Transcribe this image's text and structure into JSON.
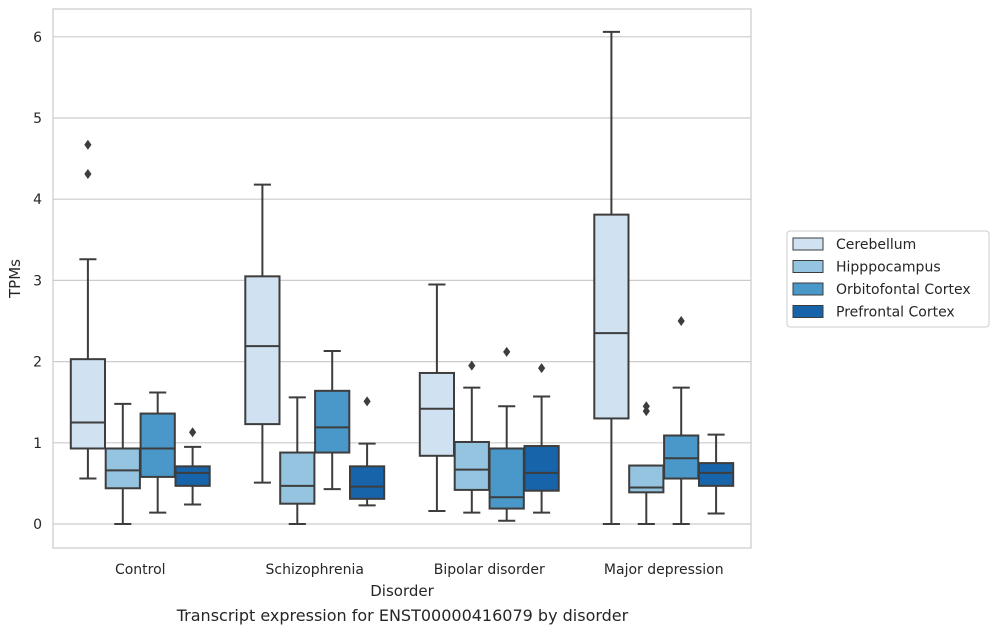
{
  "caption": "Transcript expression for ENST00000416079 by disorder",
  "chart_data": {
    "type": "box",
    "title": "",
    "xlabel": "Disorder",
    "ylabel": "TPMs",
    "ylim": [
      -0.3,
      6.35
    ],
    "yticks": [
      0,
      1,
      2,
      3,
      4,
      5,
      6
    ],
    "grid": "horizontal",
    "legend_position": "right",
    "categories": [
      "Control",
      "Schizophrenia",
      "Bipolar disorder",
      "Major depression"
    ],
    "series": [
      {
        "name": "Cerebellum",
        "color": "#d0e1f2",
        "boxes": [
          {
            "whisker_low": 0.56,
            "q1": 0.93,
            "median": 1.25,
            "q3": 2.03,
            "whisker_high": 3.26,
            "outliers": [
              4.31,
              4.67
            ]
          },
          {
            "whisker_low": 0.51,
            "q1": 1.23,
            "median": 2.19,
            "q3": 3.05,
            "whisker_high": 4.18,
            "outliers": []
          },
          {
            "whisker_low": 0.16,
            "q1": 0.84,
            "median": 1.42,
            "q3": 1.86,
            "whisker_high": 2.95,
            "outliers": []
          },
          {
            "whisker_low": 0.0,
            "q1": 1.3,
            "median": 2.35,
            "q3": 3.81,
            "whisker_high": 6.06,
            "outliers": []
          }
        ]
      },
      {
        "name": "Hipppocampus",
        "color": "#94c4df",
        "boxes": [
          {
            "whisker_low": 0.0,
            "q1": 0.44,
            "median": 0.66,
            "q3": 0.93,
            "whisker_high": 1.48,
            "outliers": []
          },
          {
            "whisker_low": 0.0,
            "q1": 0.25,
            "median": 0.47,
            "q3": 0.88,
            "whisker_high": 1.56,
            "outliers": []
          },
          {
            "whisker_low": 0.14,
            "q1": 0.42,
            "median": 0.67,
            "q3": 1.01,
            "whisker_high": 1.68,
            "outliers": [
              1.95
            ]
          },
          {
            "whisker_low": 0.0,
            "q1": 0.39,
            "median": 0.45,
            "q3": 0.72,
            "whisker_high": 0.72,
            "outliers": [
              1.39,
              1.45
            ]
          }
        ]
      },
      {
        "name": "Orbitofontal Cortex",
        "color": "#4a98c9",
        "boxes": [
          {
            "whisker_low": 0.14,
            "q1": 0.58,
            "median": 0.93,
            "q3": 1.36,
            "whisker_high": 1.62,
            "outliers": []
          },
          {
            "whisker_low": 0.43,
            "q1": 0.88,
            "median": 1.19,
            "q3": 1.64,
            "whisker_high": 2.13,
            "outliers": []
          },
          {
            "whisker_low": 0.04,
            "q1": 0.19,
            "median": 0.33,
            "q3": 0.93,
            "whisker_high": 1.45,
            "outliers": [
              2.12
            ]
          },
          {
            "whisker_low": 0.0,
            "q1": 0.56,
            "median": 0.81,
            "q3": 1.09,
            "whisker_high": 1.68,
            "outliers": [
              2.5
            ]
          }
        ]
      },
      {
        "name": "Prefrontal Cortex",
        "color": "#1764ab",
        "boxes": [
          {
            "whisker_low": 0.24,
            "q1": 0.47,
            "median": 0.63,
            "q3": 0.71,
            "whisker_high": 0.95,
            "outliers": [
              1.13
            ]
          },
          {
            "whisker_low": 0.23,
            "q1": 0.31,
            "median": 0.46,
            "q3": 0.71,
            "whisker_high": 0.99,
            "outliers": [
              1.51
            ]
          },
          {
            "whisker_low": 0.14,
            "q1": 0.41,
            "median": 0.63,
            "q3": 0.96,
            "whisker_high": 1.57,
            "outliers": [
              1.92
            ]
          },
          {
            "whisker_low": 0.13,
            "q1": 0.47,
            "median": 0.63,
            "q3": 0.75,
            "whisker_high": 1.1,
            "outliers": []
          }
        ]
      }
    ]
  }
}
